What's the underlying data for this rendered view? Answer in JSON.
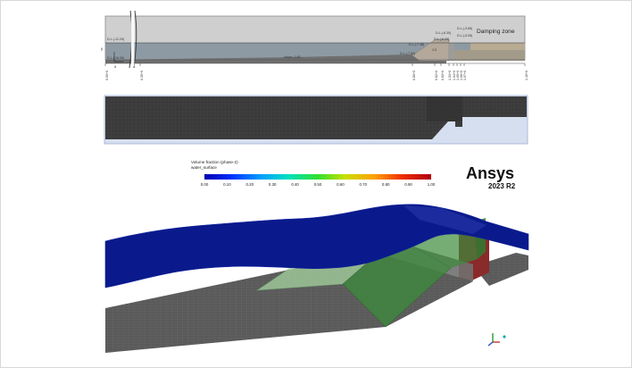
{
  "schematic": {
    "zone_label": "Damping zone",
    "slope_label": "slope= 1:60",
    "ratio_label": "1:3",
    "origin_x": "x",
    "origin_y": "y",
    "levels": {
      "left_top": "D.L.(-12.29)",
      "left_bottom": "D.L.(-16.30)",
      "crest_a": "D.L.(-3.65)",
      "crest_b": "D.L.(-5.05)",
      "crest_c": "D.L.(-6.30)",
      "mid_a": "D.L.(-6.29)",
      "mid_b": "D.L.(-7.48)",
      "toe": "D.L.(-7.50)"
    },
    "stations": [
      "0.00+0",
      "0.35+0",
      "0.80+0",
      "0.82+0",
      "0.83+0",
      "1.03+0",
      "1.04+0",
      "1.05+0",
      "1.06+0",
      "1.07+0",
      "1.40+0"
    ]
  },
  "colorbar": {
    "title_line1": "Volume fraction (phase-2)",
    "title_line2": "water_surface",
    "ticks": [
      "0.00",
      "0.10",
      "0.20",
      "0.30",
      "0.40",
      "0.50",
      "0.60",
      "0.70",
      "0.80",
      "0.90",
      "1.00"
    ]
  },
  "brand": {
    "name": "Ansys",
    "version": "2023 R2"
  }
}
